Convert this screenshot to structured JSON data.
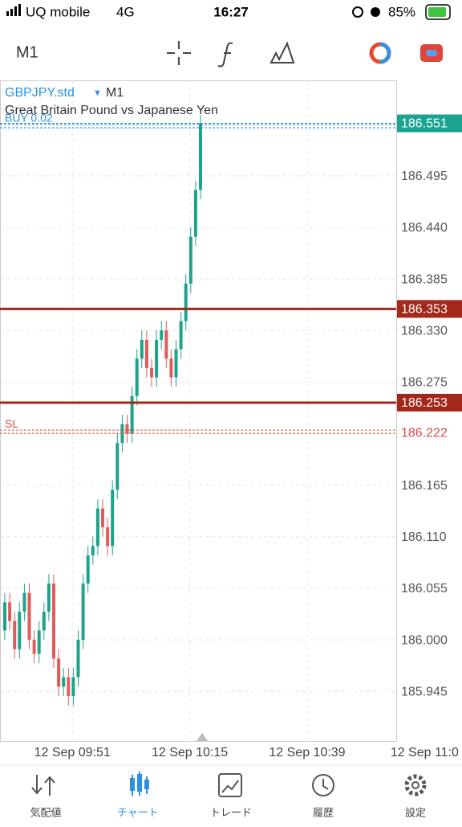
{
  "status": {
    "carrier": "UQ mobile",
    "network": "4G",
    "time": "16:27",
    "battery": "85%"
  },
  "toolbar": {
    "timeframe": "M1"
  },
  "chart_data": {
    "type": "candlestick",
    "symbol": "GBPJPY.std",
    "timeframe": "M1",
    "description": "Great Britain Pound vs Japanese Yen",
    "up_color": "#1fa28a",
    "down_color": "#e35a5a",
    "open": [
      186.01,
      186.04,
      186.02,
      185.99,
      186.03,
      186.05,
      186.0,
      185.985,
      186.01,
      186.03,
      186.06,
      185.98,
      185.95,
      185.96,
      185.94,
      185.96,
      186.0,
      186.06,
      186.09,
      186.1,
      186.14,
      186.12,
      186.1,
      186.16,
      186.21,
      186.23,
      186.22,
      186.26,
      186.3,
      186.32,
      186.29,
      186.28,
      186.32,
      186.33,
      186.3,
      186.28,
      186.31,
      186.34,
      186.38,
      186.43,
      186.48
    ],
    "high": [
      186.05,
      186.05,
      186.03,
      186.04,
      186.06,
      186.06,
      186.01,
      186.02,
      186.04,
      186.07,
      186.07,
      185.99,
      185.97,
      185.97,
      185.97,
      186.01,
      186.07,
      186.1,
      186.11,
      186.15,
      186.15,
      186.13,
      186.17,
      186.22,
      186.24,
      186.24,
      186.27,
      186.31,
      186.33,
      186.33,
      186.3,
      186.33,
      186.34,
      186.34,
      186.31,
      186.32,
      186.35,
      186.39,
      186.44,
      186.49,
      186.56
    ],
    "low": [
      186.0,
      186.01,
      185.98,
      185.98,
      186.02,
      185.99,
      185.975,
      185.975,
      186.0,
      186.02,
      185.97,
      185.94,
      185.94,
      185.93,
      185.93,
      185.95,
      185.99,
      186.05,
      186.08,
      186.09,
      186.11,
      186.09,
      186.09,
      186.15,
      186.2,
      186.21,
      186.21,
      186.25,
      186.29,
      186.28,
      186.27,
      186.27,
      186.31,
      186.29,
      186.27,
      186.27,
      186.3,
      186.33,
      186.37,
      186.42,
      186.47
    ],
    "close": [
      186.04,
      186.02,
      185.99,
      186.03,
      186.05,
      186.0,
      185.985,
      186.01,
      186.03,
      186.06,
      185.98,
      185.95,
      185.96,
      185.94,
      185.96,
      186.0,
      186.06,
      186.09,
      186.1,
      186.14,
      186.12,
      186.1,
      186.16,
      186.21,
      186.23,
      186.22,
      186.26,
      186.3,
      186.32,
      186.29,
      186.28,
      186.32,
      186.33,
      186.3,
      186.28,
      186.31,
      186.34,
      186.38,
      186.43,
      186.48,
      186.551
    ],
    "ylim": [
      185.892,
      186.596
    ],
    "yticks": [
      186.495,
      {
        "value": 186.44,
        "label": "186.440"
      },
      186.385,
      {
        "value": 186.33,
        "label": "186.330"
      },
      186.275,
      186.165,
      {
        "value": 186.11,
        "label": "186.110"
      },
      186.055,
      {
        "value": 186,
        "label": "186.000"
      },
      185.945
    ],
    "xticks": [
      "12 Sep 09:51",
      "12 Sep 10:15",
      "12 Sep 10:39",
      "12 Sep 11:0"
    ],
    "grid": true,
    "price": 186.551,
    "price_color": "#1aa38f",
    "hlines": [
      186.353,
      186.253
    ],
    "hline_color": "#a3271a",
    "orders": [
      {
        "label": "BUY 0.02",
        "value": 186.548,
        "color": "#2d8fe0"
      },
      {
        "label": "SL",
        "value": 186.222,
        "color": "#e04848"
      }
    ]
  },
  "nav": [
    "気配値",
    "チャート",
    "トレード",
    "履歴",
    "設定"
  ]
}
